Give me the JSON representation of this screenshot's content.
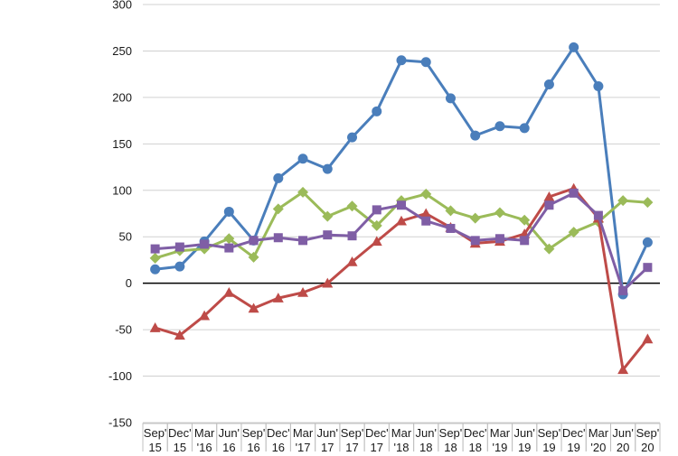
{
  "chart_data": {
    "type": "line",
    "title": "",
    "xlabel": "",
    "ylabel": "",
    "ylim": [
      -150,
      300
    ],
    "yticks": [
      300,
      250,
      200,
      150,
      100,
      50,
      0,
      -50,
      -100,
      -150
    ],
    "grid": true,
    "legend": "none",
    "categories": [
      [
        "Sep'",
        "15"
      ],
      [
        "Dec'",
        "15"
      ],
      [
        "Mar",
        "'16"
      ],
      [
        "Jun'",
        "16"
      ],
      [
        "Sep'",
        "16"
      ],
      [
        "Dec'",
        "16"
      ],
      [
        "Mar",
        "'17"
      ],
      [
        "Jun'",
        "17"
      ],
      [
        "Sep'",
        "17"
      ],
      [
        "Dec'",
        "17"
      ],
      [
        "Mar",
        "'18"
      ],
      [
        "Jun'",
        "18"
      ],
      [
        "Sep'",
        "18"
      ],
      [
        "Dec'",
        "18"
      ],
      [
        "Mar",
        "'19"
      ],
      [
        "Jun'",
        "19"
      ],
      [
        "Sep'",
        "19"
      ],
      [
        "Dec'",
        "19"
      ],
      [
        "Mar",
        "'20"
      ],
      [
        "Jun'",
        "20"
      ],
      [
        "Sep'",
        "20"
      ]
    ],
    "series": [
      {
        "name": "blue",
        "color": "#4a7ebb",
        "marker": "circle",
        "values": [
          15,
          18,
          45,
          77,
          46,
          113,
          134,
          123,
          157,
          185,
          240,
          238,
          199,
          159,
          169,
          167,
          214,
          254,
          212,
          -12,
          44
        ]
      },
      {
        "name": "green",
        "color": "#9bbb59",
        "marker": "diamond",
        "values": [
          27,
          35,
          37,
          48,
          28,
          80,
          98,
          72,
          83,
          62,
          89,
          96,
          78,
          70,
          76,
          68,
          37,
          55,
          66,
          89,
          87
        ]
      },
      {
        "name": "red",
        "color": "#be4b48",
        "marker": "triangle",
        "values": [
          -48,
          -56,
          -35,
          -10,
          -27,
          -16,
          -10,
          0,
          23,
          45,
          67,
          75,
          60,
          43,
          45,
          53,
          93,
          102,
          70,
          -93,
          -60
        ]
      },
      {
        "name": "purple",
        "color": "#7f5ea5",
        "marker": "square",
        "values": [
          37,
          39,
          42,
          38,
          46,
          49,
          46,
          52,
          51,
          79,
          84,
          67,
          59,
          46,
          48,
          46,
          84,
          97,
          73,
          -8,
          17
        ]
      }
    ]
  }
}
